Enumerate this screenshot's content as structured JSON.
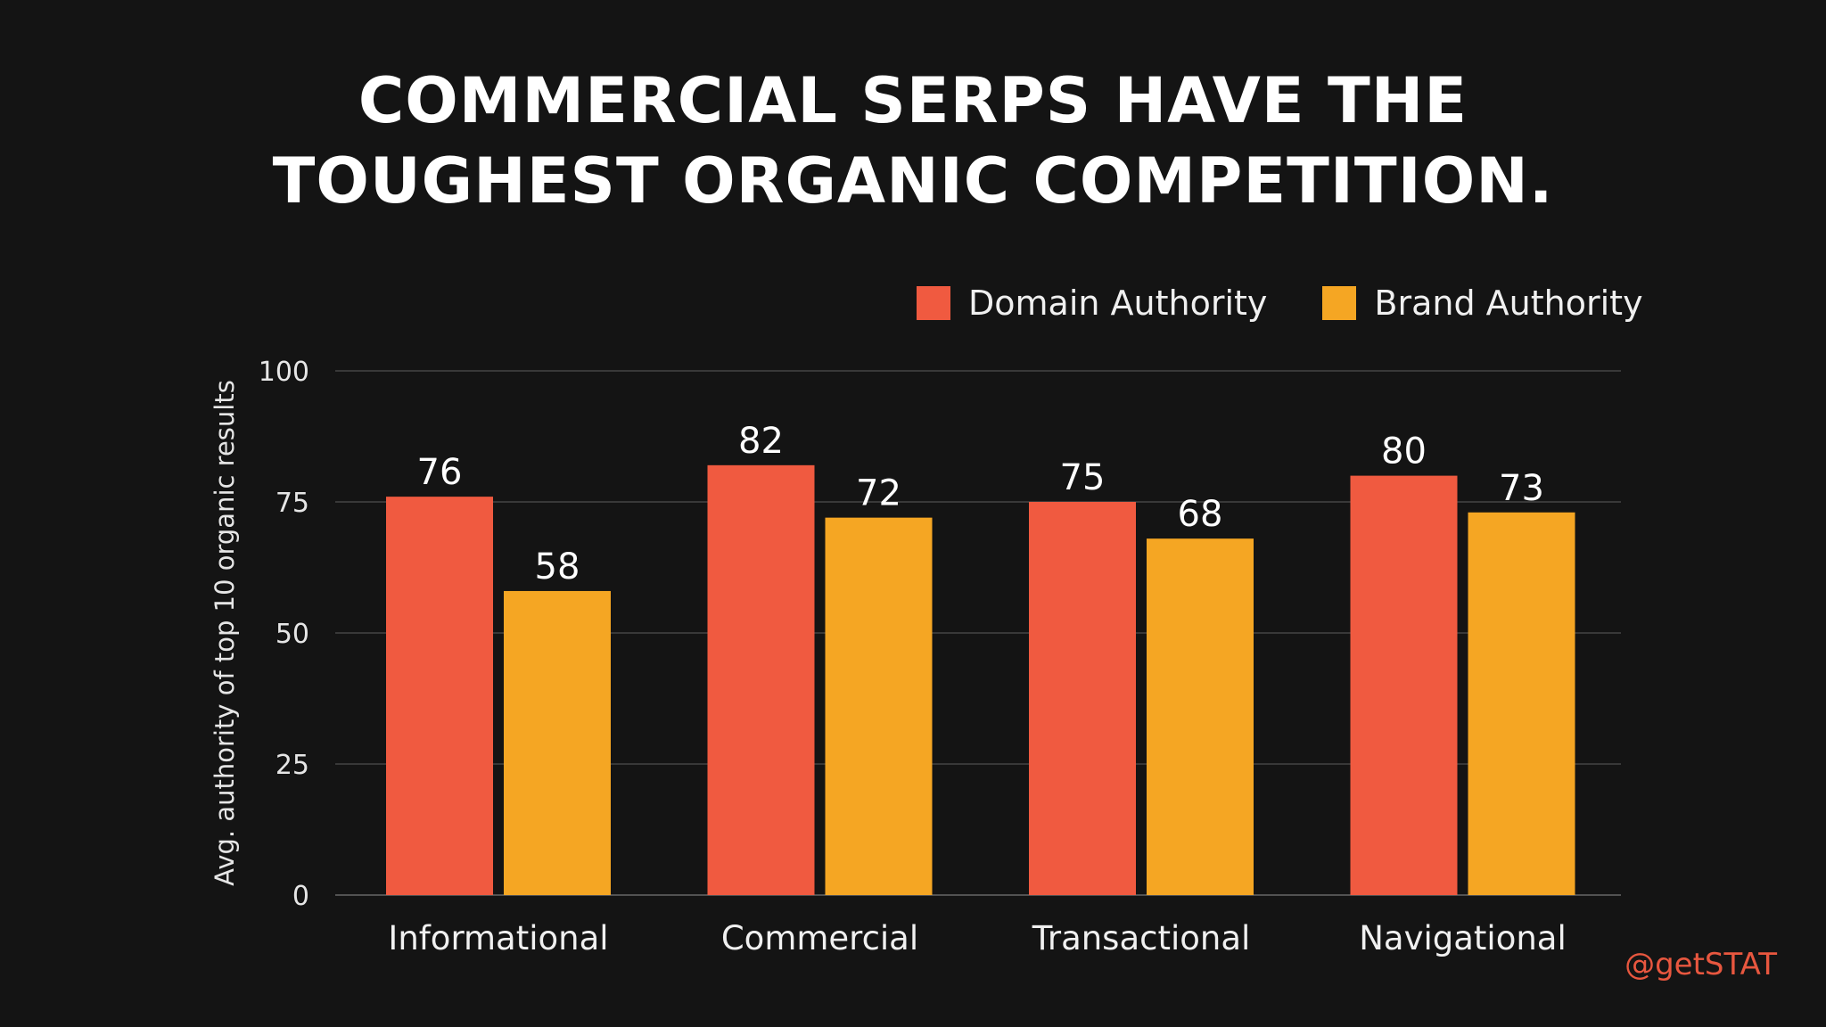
{
  "title": {
    "line1": "COMMERCIAL SERPS HAVE THE",
    "line2": "TOUGHEST ORGANIC COMPETITION."
  },
  "watermark": "@getSTAT",
  "colors": {
    "background": "#141414",
    "domain_authority": "#f05a40",
    "brand_authority": "#f5a623",
    "gridline": "#444444",
    "text": "#ffffff",
    "watermark": "#e8573f"
  },
  "chart_data": {
    "type": "bar",
    "categories": [
      "Informational",
      "Commercial",
      "Transactional",
      "Navigational"
    ],
    "series": [
      {
        "name": "Domain Authority",
        "values": [
          76,
          82,
          75,
          80
        ],
        "color": "#f05a40"
      },
      {
        "name": "Brand Authority",
        "values": [
          58,
          72,
          68,
          73
        ],
        "color": "#f5a623"
      }
    ],
    "ylabel": "Avg. authority of top 10 organic results",
    "xlabel": "",
    "ylim": [
      0,
      100
    ],
    "yticks": [
      0,
      25,
      50,
      75,
      100
    ],
    "grid": true,
    "legend_position": "top-right",
    "data_labels": true
  }
}
